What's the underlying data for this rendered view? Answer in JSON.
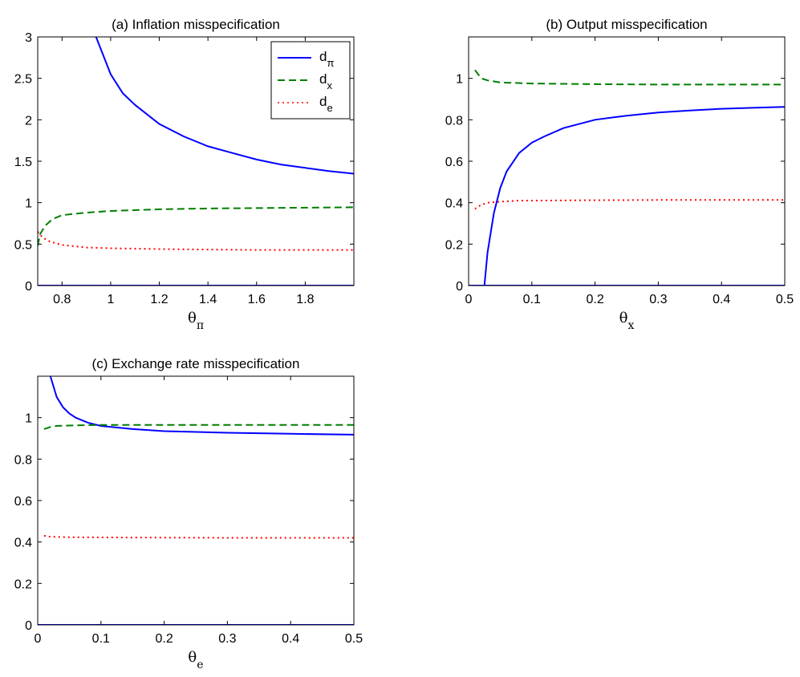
{
  "chart_data": [
    {
      "type": "line",
      "title": "(a) Inflation misspecification",
      "xlabel": {
        "base": "θ",
        "sub": "π"
      },
      "xlim": [
        0.7,
        2.0
      ],
      "ylim": [
        0,
        3
      ],
      "xticks": [
        0.8,
        1,
        1.2,
        1.4,
        1.6,
        1.8
      ],
      "xtick_labels": [
        "0.8",
        "1",
        "1.2",
        "1.4",
        "1.6",
        "1.8"
      ],
      "yticks": [
        0,
        0.5,
        1,
        1.5,
        2,
        2.5,
        3
      ],
      "ytick_labels": [
        "0",
        "0.5",
        "1",
        "1.5",
        "2",
        "2.5",
        "3"
      ],
      "legend": {
        "position": "top-right"
      },
      "series": [
        {
          "key": "dpi",
          "name": "d",
          "sub": "π",
          "style": "solid",
          "color": "#0000ff",
          "x": [
            0.94,
            1.0,
            1.05,
            1.1,
            1.2,
            1.3,
            1.4,
            1.5,
            1.6,
            1.7,
            1.8,
            1.9,
            2.0
          ],
          "y": [
            3.0,
            2.55,
            2.32,
            2.18,
            1.95,
            1.8,
            1.68,
            1.6,
            1.52,
            1.46,
            1.42,
            1.38,
            1.35
          ]
        },
        {
          "key": "dx",
          "name": "d",
          "sub": "x",
          "style": "dashed",
          "color": "#007f00",
          "x": [
            0.7,
            0.71,
            0.73,
            0.76,
            0.8,
            0.9,
            1.0,
            1.2,
            1.4,
            1.6,
            1.8,
            2.0
          ],
          "y": [
            0.48,
            0.62,
            0.72,
            0.8,
            0.85,
            0.88,
            0.9,
            0.92,
            0.93,
            0.935,
            0.94,
            0.945
          ]
        },
        {
          "key": "de",
          "name": "d",
          "sub": "e",
          "style": "dotted",
          "color": "#ff0000",
          "x": [
            0.7,
            0.72,
            0.75,
            0.8,
            0.9,
            1.0,
            1.2,
            1.4,
            1.6,
            1.8,
            2.0
          ],
          "y": [
            0.65,
            0.58,
            0.53,
            0.49,
            0.46,
            0.45,
            0.44,
            0.435,
            0.43,
            0.43,
            0.43
          ]
        },
        {
          "key": "zero",
          "name": "",
          "style": "solid",
          "color": "#0000ff",
          "x": [
            0.7,
            2.0
          ],
          "y": [
            0,
            0
          ]
        }
      ]
    },
    {
      "type": "line",
      "title": "(b) Output misspecification",
      "xlabel": {
        "base": "θ",
        "sub": "x"
      },
      "xlim": [
        0,
        0.5
      ],
      "ylim": [
        0,
        1.2
      ],
      "xticks": [
        0,
        0.1,
        0.2,
        0.3,
        0.4,
        0.5
      ],
      "xtick_labels": [
        "0",
        "0.1",
        "0.2",
        "0.3",
        "0.4",
        "0.5"
      ],
      "yticks": [
        0,
        0.2,
        0.4,
        0.6,
        0.8,
        1
      ],
      "ytick_labels": [
        "0",
        "0.2",
        "0.4",
        "0.6",
        "0.8",
        "1"
      ],
      "series": [
        {
          "key": "dpi",
          "style": "solid",
          "color": "#0000ff",
          "x": [
            0.025,
            0.03,
            0.04,
            0.05,
            0.06,
            0.08,
            0.1,
            0.12,
            0.15,
            0.2,
            0.25,
            0.3,
            0.35,
            0.4,
            0.45,
            0.5
          ],
          "y": [
            0.0,
            0.16,
            0.35,
            0.47,
            0.55,
            0.64,
            0.69,
            0.72,
            0.76,
            0.8,
            0.82,
            0.835,
            0.845,
            0.853,
            0.858,
            0.862
          ]
        },
        {
          "key": "dx",
          "style": "dashed",
          "color": "#007f00",
          "x": [
            0.01,
            0.015,
            0.02,
            0.03,
            0.05,
            0.1,
            0.2,
            0.3,
            0.4,
            0.5
          ],
          "y": [
            1.04,
            1.02,
            1.0,
            0.99,
            0.98,
            0.975,
            0.972,
            0.97,
            0.97,
            0.97
          ]
        },
        {
          "key": "de",
          "style": "dotted",
          "color": "#ff0000",
          "x": [
            0.01,
            0.02,
            0.03,
            0.05,
            0.08,
            0.1,
            0.2,
            0.3,
            0.4,
            0.5
          ],
          "y": [
            0.37,
            0.39,
            0.4,
            0.405,
            0.41,
            0.41,
            0.412,
            0.413,
            0.413,
            0.413
          ]
        },
        {
          "key": "zero",
          "style": "solid",
          "color": "#0000ff",
          "x": [
            0,
            0.5
          ],
          "y": [
            0,
            0
          ]
        }
      ]
    },
    {
      "type": "line",
      "title": "(c) Exchange rate misspecification",
      "xlabel": {
        "base": "θ",
        "sub": "e"
      },
      "xlim": [
        0,
        0.5
      ],
      "ylim": [
        0,
        1.2
      ],
      "xticks": [
        0,
        0.1,
        0.2,
        0.3,
        0.4,
        0.5
      ],
      "xtick_labels": [
        "0",
        "0.1",
        "0.2",
        "0.3",
        "0.4",
        "0.5"
      ],
      "yticks": [
        0,
        0.2,
        0.4,
        0.6,
        0.8,
        1
      ],
      "ytick_labels": [
        "0",
        "0.2",
        "0.4",
        "0.6",
        "0.8",
        "1"
      ],
      "series": [
        {
          "key": "dpi",
          "style": "solid",
          "color": "#0000ff",
          "x": [
            0.02,
            0.03,
            0.04,
            0.05,
            0.06,
            0.08,
            0.1,
            0.15,
            0.2,
            0.3,
            0.4,
            0.5
          ],
          "y": [
            1.2,
            1.1,
            1.05,
            1.02,
            1.0,
            0.975,
            0.96,
            0.945,
            0.935,
            0.927,
            0.922,
            0.918
          ]
        },
        {
          "key": "dx",
          "style": "dashed",
          "color": "#007f00",
          "x": [
            0.01,
            0.02,
            0.03,
            0.05,
            0.1,
            0.2,
            0.3,
            0.4,
            0.5
          ],
          "y": [
            0.945,
            0.955,
            0.96,
            0.962,
            0.965,
            0.965,
            0.965,
            0.965,
            0.965
          ]
        },
        {
          "key": "de",
          "style": "dotted",
          "color": "#ff0000",
          "x": [
            0.01,
            0.02,
            0.05,
            0.1,
            0.2,
            0.3,
            0.4,
            0.5
          ],
          "y": [
            0.43,
            0.425,
            0.423,
            0.422,
            0.421,
            0.42,
            0.42,
            0.42
          ]
        },
        {
          "key": "zero",
          "style": "solid",
          "color": "#0000ff",
          "x": [
            0,
            0.5
          ],
          "y": [
            0,
            0
          ]
        }
      ]
    }
  ]
}
